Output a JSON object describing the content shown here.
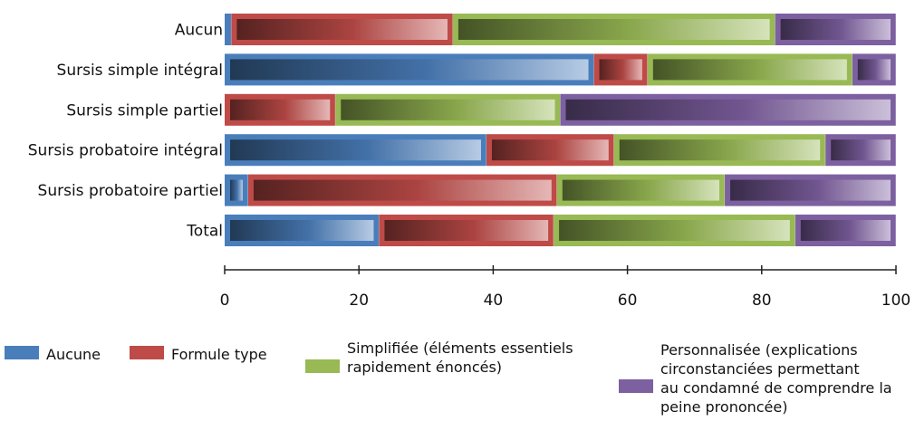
{
  "chart_data": {
    "type": "bar",
    "orientation": "horizontal",
    "stacked": true,
    "categories": [
      "Aucun",
      "Sursis simple intégral",
      "Sursis simple partiel",
      "Sursis probatoire intégral",
      "Sursis probatoire partiel",
      "Total"
    ],
    "series": [
      {
        "name": "Aucune",
        "color": "#4a7ebb",
        "values": [
          1,
          55,
          0,
          39,
          3.5,
          23
        ]
      },
      {
        "name": "Formule type",
        "color": "#be4b48",
        "values": [
          33,
          8,
          16.5,
          19,
          46,
          26
        ]
      },
      {
        "name": "Simplifiée (éléments essentiels rapidement énoncés)",
        "color": "#98b954",
        "values": [
          48,
          30.5,
          33.5,
          31.5,
          25,
          36
        ]
      },
      {
        "name": "Personnalisée (explications circonstanciées permettant au condamné de comprendre la peine prononcée)",
        "color": "#7d60a0",
        "values": [
          18,
          6.5,
          50,
          10.5,
          25.5,
          15
        ]
      }
    ],
    "xlim": [
      0,
      100
    ],
    "xticks": [
      0,
      20,
      40,
      60,
      80,
      100
    ],
    "xticklabels": [
      "0",
      "20",
      "40",
      "60",
      "80",
      "100"
    ],
    "grid": false,
    "legend_position": "bottom"
  }
}
